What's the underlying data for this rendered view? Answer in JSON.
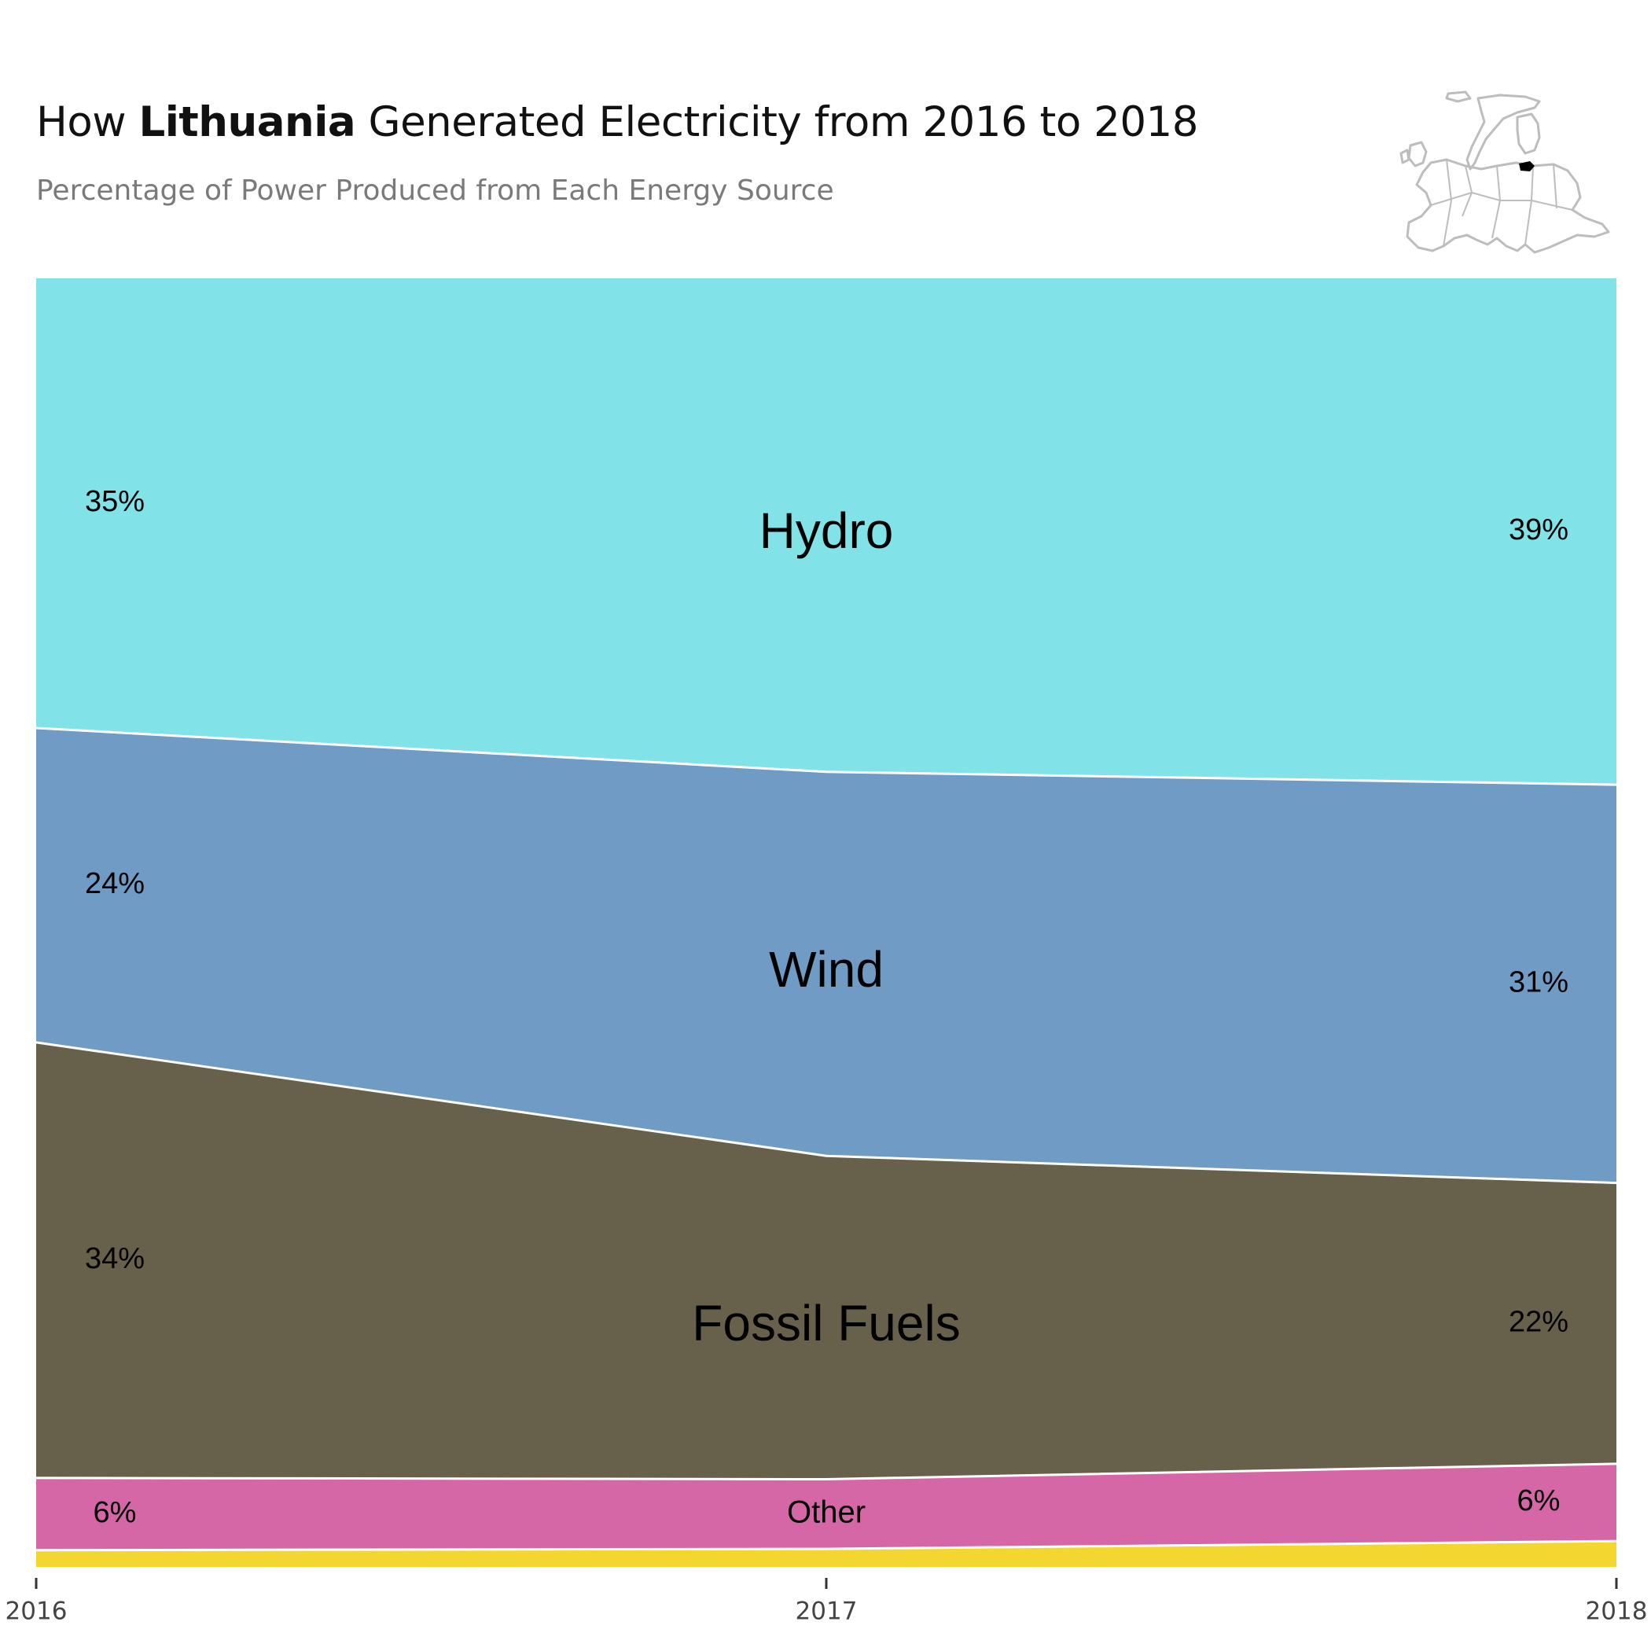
{
  "header": {
    "title_prefix": "How ",
    "title_country": "Lithuania",
    "title_suffix": " Generated Electricity from 2016 to 2018",
    "subtitle": "Percentage of Power Produced from Each Energy Source"
  },
  "map": {
    "icon": "europe-map-icon",
    "highlight_color": "#000000",
    "outline_color": "#bdbdbd"
  },
  "chart_data": {
    "type": "area",
    "stacked": true,
    "x": [
      "2016",
      "2017",
      "2018"
    ],
    "ylim": [
      0,
      100
    ],
    "grid": false,
    "legend": "none",
    "series": [
      {
        "name": "",
        "color": "#F4D630",
        "values": [
          1.3,
          1.4,
          2.0
        ]
      },
      {
        "name": "Other",
        "color": "#D567A7",
        "values": [
          5.6,
          5.4,
          6.0
        ],
        "label_left": "6%",
        "label_right": "6%"
      },
      {
        "name": "Fossil Fuels",
        "color": "#67604B",
        "values": [
          33.8,
          25.1,
          21.8
        ],
        "label_left": "34%",
        "label_right": "22%"
      },
      {
        "name": "Wind",
        "color": "#6F9BC4",
        "values": [
          24.4,
          29.8,
          30.9
        ],
        "label_left": "24%",
        "label_right": "31%"
      },
      {
        "name": "Hydro",
        "color": "#81E3E8",
        "values": [
          34.9,
          38.3,
          39.3
        ],
        "label_left": "35%",
        "label_right": "39%"
      }
    ]
  }
}
